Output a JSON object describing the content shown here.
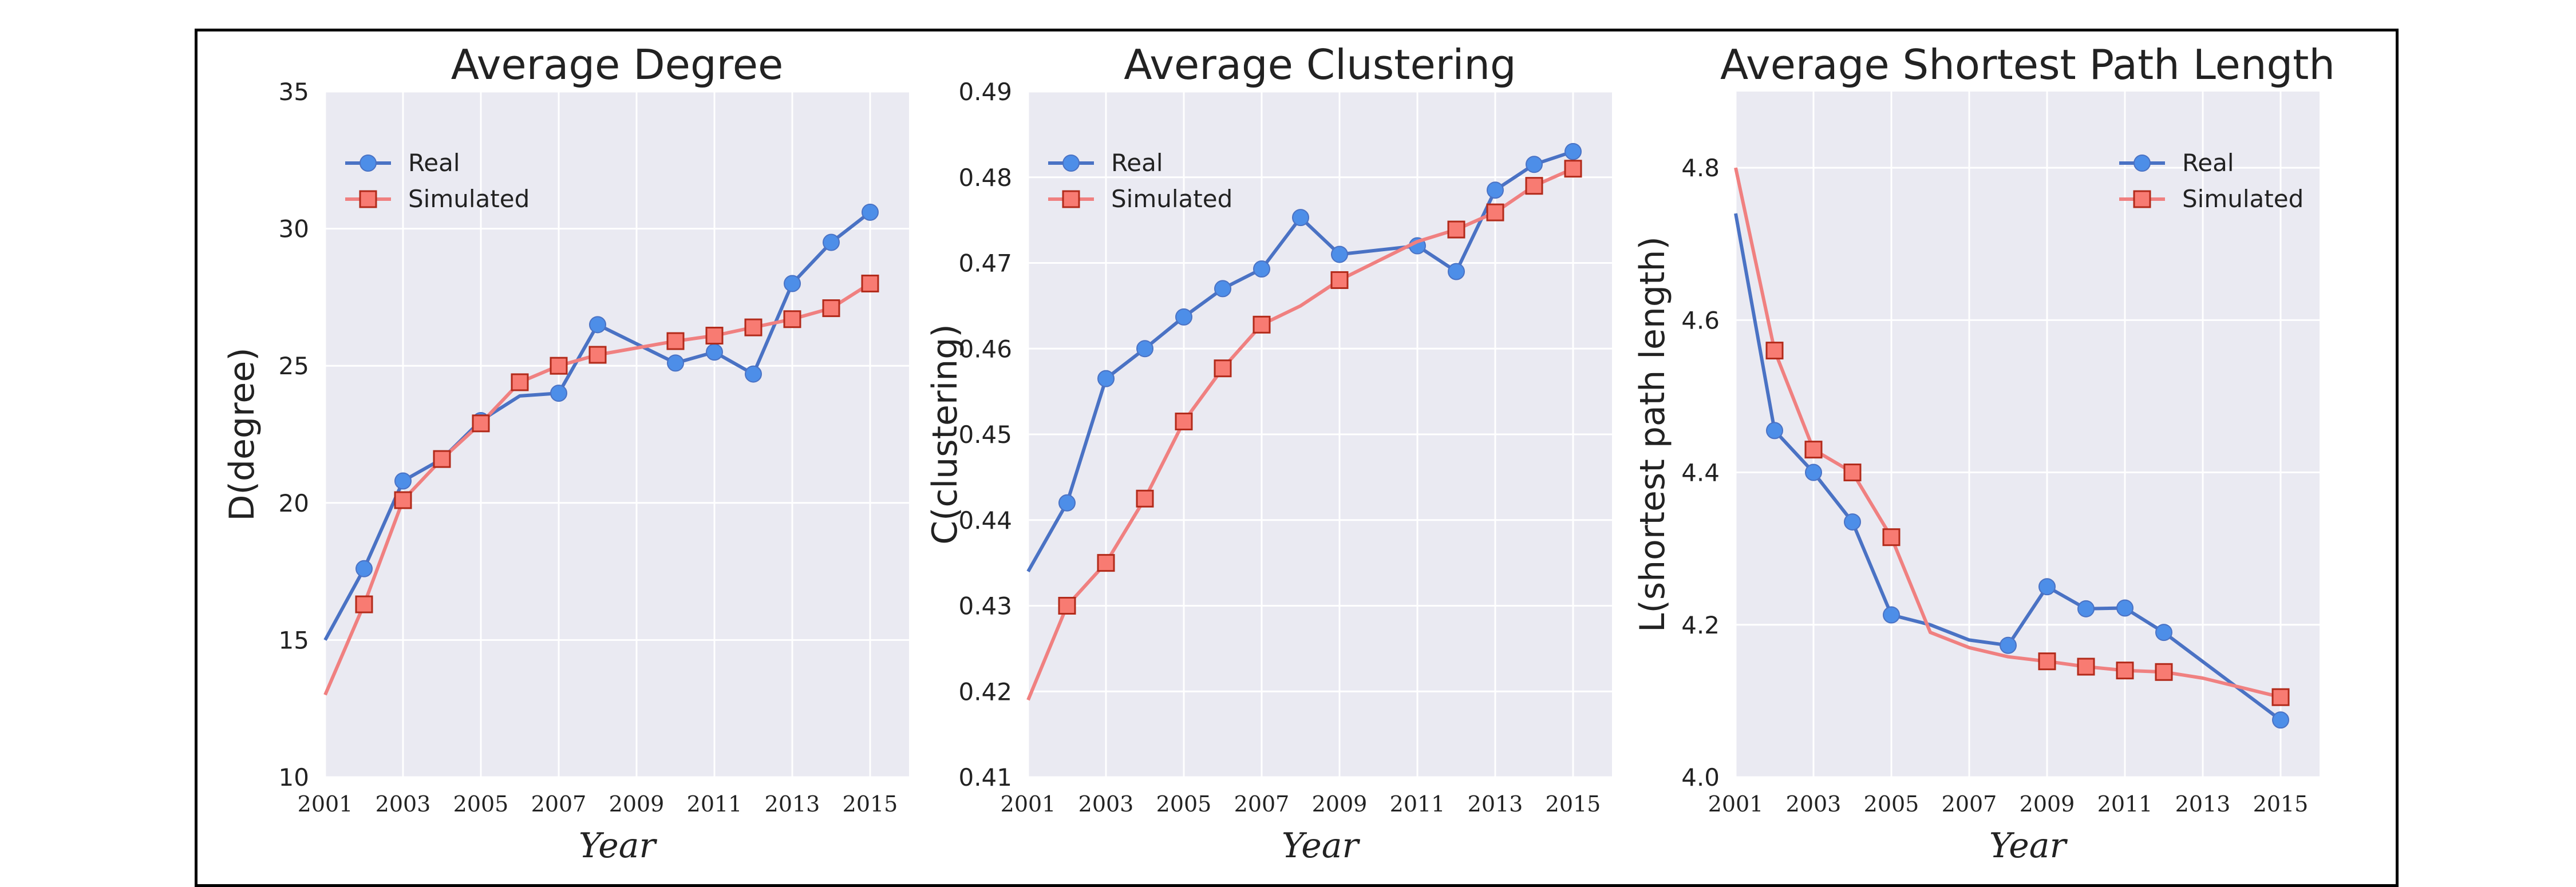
{
  "colors": {
    "real": "#4a72c4",
    "real_marker": "#4d8ee8",
    "simulated": "#f08080",
    "simulated_marker": "#f87b72",
    "simulated_marker_edge": "#b22a1a",
    "plot_bg": "#eaeaf2",
    "grid": "#ffffff"
  },
  "chart_data": [
    {
      "type": "line",
      "title": "Average Degree",
      "xlabel": "Year",
      "ylabel": "D(degree)",
      "xlim": [
        2001,
        2016.0
      ],
      "ylim": [
        10,
        35
      ],
      "xticks": [
        "2001",
        "2003",
        "2005",
        "2007",
        "2009",
        "2011",
        "2013",
        "2015"
      ],
      "yticks": [
        "10",
        "15",
        "20",
        "25",
        "30",
        "35"
      ],
      "legend": "top-left",
      "grid": true,
      "series": [
        {
          "name": "Real",
          "x": [
            2001,
            2002,
            2003,
            2004,
            2005,
            2006,
            2007,
            2008,
            2009,
            2010,
            2011,
            2012,
            2013,
            2014,
            2015
          ],
          "y": [
            15.0,
            17.6,
            20.8,
            21.6,
            23.0,
            23.9,
            24.0,
            26.5,
            null,
            25.1,
            25.5,
            24.7,
            28.0,
            29.5,
            30.6
          ],
          "markers": [
            false,
            true,
            true,
            true,
            true,
            false,
            true,
            true,
            false,
            true,
            true,
            true,
            true,
            true,
            true
          ]
        },
        {
          "name": "Simulated",
          "x": [
            2001,
            2002,
            2003,
            2004,
            2005,
            2006,
            2007,
            2008,
            2009,
            2010,
            2011,
            2012,
            2013,
            2014,
            2015
          ],
          "y": [
            13.0,
            16.3,
            20.1,
            21.6,
            22.9,
            24.4,
            25.0,
            25.4,
            null,
            25.9,
            26.1,
            26.4,
            26.7,
            27.1,
            28.0
          ],
          "markers": [
            false,
            true,
            true,
            true,
            true,
            true,
            true,
            true,
            false,
            true,
            true,
            true,
            true,
            true,
            true
          ]
        }
      ]
    },
    {
      "type": "line",
      "title": "Average Clustering",
      "xlabel": "Year",
      "ylabel": "C(clustering)",
      "xlim": [
        2001,
        2016.0
      ],
      "ylim": [
        0.41,
        0.49
      ],
      "xticks": [
        "2001",
        "2003",
        "2005",
        "2007",
        "2009",
        "2011",
        "2013",
        "2015"
      ],
      "yticks": [
        "0.41",
        "0.42",
        "0.43",
        "0.44",
        "0.45",
        "0.46",
        "0.47",
        "0.48",
        "0.49"
      ],
      "legend": "top-left",
      "grid": true,
      "series": [
        {
          "name": "Real",
          "x": [
            2001,
            2002,
            2003,
            2004,
            2005,
            2006,
            2007,
            2008,
            2009,
            2010,
            2011,
            2012,
            2013,
            2014,
            2015
          ],
          "y": [
            0.434,
            0.442,
            0.4565,
            0.46,
            0.4637,
            0.467,
            0.4693,
            0.4753,
            0.471,
            null,
            0.472,
            0.469,
            0.4785,
            0.4815,
            0.483
          ],
          "markers": [
            false,
            true,
            true,
            true,
            true,
            true,
            true,
            true,
            true,
            false,
            true,
            true,
            true,
            true,
            true
          ]
        },
        {
          "name": "Simulated",
          "x": [
            2001,
            2002,
            2003,
            2004,
            2005,
            2006,
            2007,
            2008,
            2009,
            2010,
            2011,
            2012,
            2013,
            2014,
            2015
          ],
          "y": [
            0.419,
            0.43,
            0.435,
            0.4425,
            0.4515,
            0.4577,
            0.4628,
            0.465,
            0.468,
            null,
            0.4725,
            0.4739,
            0.4759,
            0.479,
            0.481
          ],
          "markers": [
            false,
            true,
            true,
            true,
            true,
            true,
            true,
            false,
            true,
            false,
            false,
            true,
            true,
            true,
            true
          ]
        }
      ]
    },
    {
      "type": "line",
      "title": "Average Shortest Path Length",
      "xlabel": "Year",
      "ylabel": "L(shortest path length)",
      "xlim": [
        2001,
        2016.0
      ],
      "ylim": [
        4.0,
        4.9
      ],
      "xticks": [
        "2001",
        "2003",
        "2005",
        "2007",
        "2009",
        "2011",
        "2013",
        "2015"
      ],
      "yticks": [
        "4.0",
        "4.2",
        "4.4",
        "4.6",
        "4.8"
      ],
      "legend": "top-right",
      "grid": true,
      "series": [
        {
          "name": "Real",
          "x": [
            2001,
            2002,
            2003,
            2004,
            2005,
            2006,
            2007,
            2008,
            2009,
            2010,
            2011,
            2012,
            2013,
            2014,
            2015
          ],
          "y": [
            4.74,
            4.455,
            4.4,
            4.335,
            4.213,
            4.2,
            4.18,
            4.173,
            4.25,
            4.221,
            4.222,
            4.19,
            null,
            null,
            4.075
          ],
          "markers": [
            false,
            true,
            true,
            true,
            true,
            false,
            false,
            true,
            true,
            true,
            true,
            true,
            false,
            false,
            true
          ]
        },
        {
          "name": "Simulated",
          "x": [
            2001,
            2002,
            2003,
            2004,
            2005,
            2006,
            2007,
            2008,
            2009,
            2010,
            2011,
            2012,
            2013,
            2014,
            2015
          ],
          "y": [
            4.8,
            4.56,
            4.43,
            4.4,
            4.315,
            4.19,
            4.17,
            4.158,
            4.152,
            4.145,
            4.14,
            4.138,
            4.13,
            null,
            4.105
          ],
          "markers": [
            false,
            true,
            true,
            true,
            true,
            false,
            false,
            false,
            true,
            true,
            true,
            true,
            false,
            false,
            true
          ]
        }
      ]
    }
  ]
}
